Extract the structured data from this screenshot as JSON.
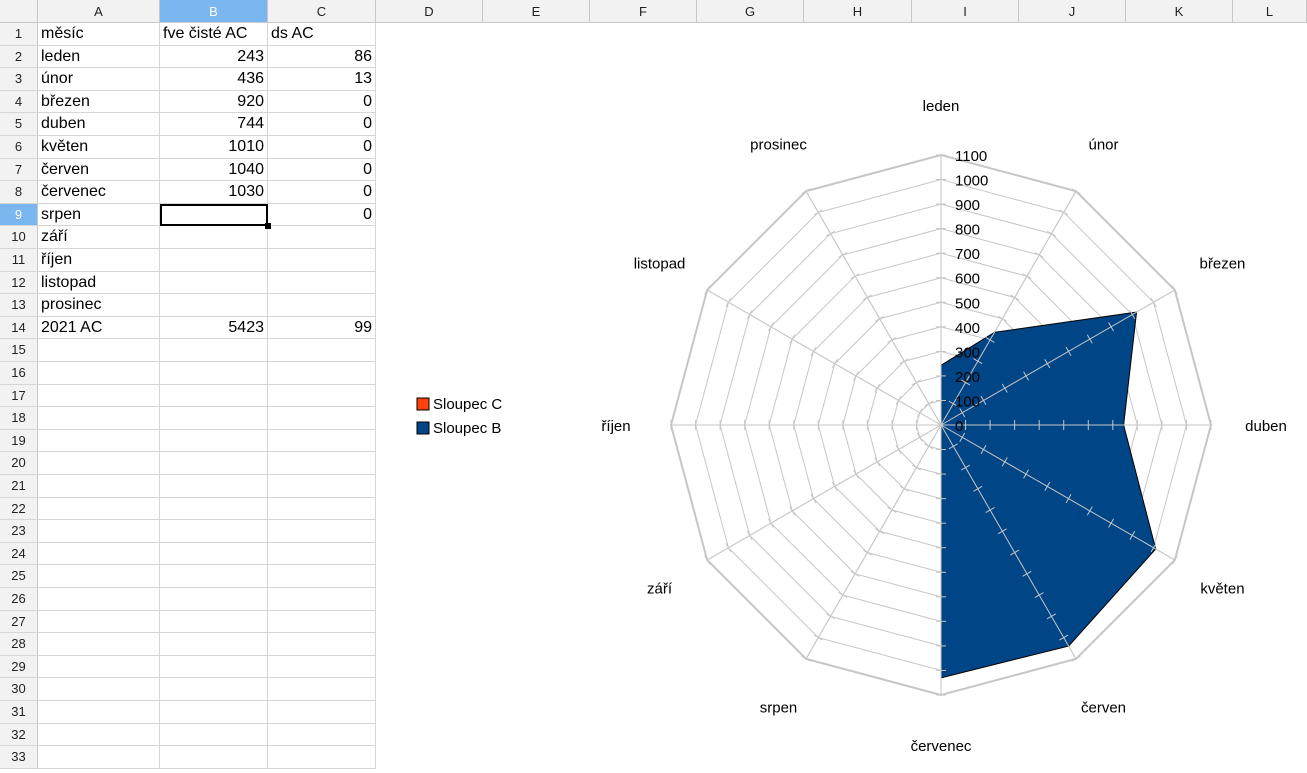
{
  "spreadsheet": {
    "columns": [
      "A",
      "B",
      "C",
      "D",
      "E",
      "F",
      "G",
      "H",
      "I",
      "J",
      "K",
      "L"
    ],
    "selected_column": "B",
    "selected_row": 9,
    "row_numbers": [
      "1",
      "2",
      "3",
      "4",
      "5",
      "6",
      "7",
      "8",
      "9",
      "10",
      "11",
      "12",
      "13",
      "14",
      "15",
      "16",
      "17",
      "18",
      "19",
      "20",
      "21",
      "22",
      "23",
      "24",
      "25",
      "26",
      "27",
      "28",
      "29",
      "30",
      "31",
      "32",
      "33"
    ],
    "rows": [
      {
        "a": "měsíc",
        "b": "fve čisté AC",
        "c": "ds AC"
      },
      {
        "a": "leden",
        "b": "243",
        "c": "86"
      },
      {
        "a": "únor",
        "b": "436",
        "c": "13"
      },
      {
        "a": "březen",
        "b": "920",
        "c": "0"
      },
      {
        "a": "duben",
        "b": "744",
        "c": "0"
      },
      {
        "a": "květen",
        "b": "1010",
        "c": "0"
      },
      {
        "a": "červen",
        "b": "1040",
        "c": "0"
      },
      {
        "a": "červenec",
        "b": "1030",
        "c": "0"
      },
      {
        "a": "srpen",
        "b": "",
        "c": "0"
      },
      {
        "a": "září",
        "b": "",
        "c": ""
      },
      {
        "a": "říjen",
        "b": "",
        "c": ""
      },
      {
        "a": "listopad",
        "b": "",
        "c": ""
      },
      {
        "a": "prosinec",
        "b": "",
        "c": ""
      },
      {
        "a": "2021 AC",
        "b": "5423",
        "c": "99"
      }
    ]
  },
  "chart_data": {
    "type": "radar",
    "categories": [
      "leden",
      "únor",
      "březen",
      "duben",
      "květen",
      "červen",
      "červenec",
      "srpen",
      "září",
      "říjen",
      "listopad",
      "prosinec"
    ],
    "series": [
      {
        "name": "Sloupec B",
        "values": [
          243,
          436,
          920,
          744,
          1010,
          1040,
          1030,
          0,
          0,
          0,
          0,
          0
        ],
        "color": "#004586"
      },
      {
        "name": "Sloupec C",
        "values": [
          86,
          13,
          0,
          0,
          0,
          0,
          0,
          0,
          0,
          0,
          0,
          0
        ],
        "color": "#ff420e"
      }
    ],
    "ticks": [
      "0",
      "100",
      "200",
      "300",
      "400",
      "500",
      "600",
      "700",
      "800",
      "900",
      "1000",
      "1100"
    ],
    "ylim": [
      0,
      1100
    ],
    "grid": true,
    "legend": {
      "placement": "left",
      "entries": [
        "Sloupec C",
        "Sloupec B"
      ]
    }
  }
}
